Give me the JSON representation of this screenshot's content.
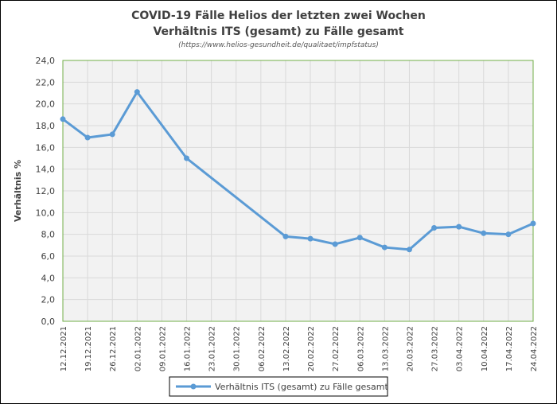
{
  "chart_data": {
    "type": "line",
    "title": "COVID-19 Fälle Helios der letzten zwei Wochen",
    "subtitle": "Verhältnis ITS (gesamt) zu Fälle gesamt",
    "source": "(https://www.helios-gesundheit.de/qualitaet/impfstatus)",
    "xlabel": "",
    "ylabel": "Verhältnis %",
    "ylim": [
      0,
      24
    ],
    "ytick_step": 2,
    "ytick_labels": [
      "0,0",
      "2,0",
      "4,0",
      "6,0",
      "8,0",
      "10,0",
      "12,0",
      "14,0",
      "16,0",
      "18,0",
      "20,0",
      "22,0",
      "24,0"
    ],
    "categories": [
      "12.12.2021",
      "19.12.2021",
      "26.12.2021",
      "02.01.2022",
      "09.01.2022",
      "16.01.2022",
      "23.01.2022",
      "30.01.2022",
      "06.02.2022",
      "13.02.2022",
      "20.02.2022",
      "27.02.2022",
      "06.03.2022",
      "13.03.2022",
      "20.03.2022",
      "27.03.2022",
      "03.04.2022",
      "10.04.2022",
      "17.04.2022",
      "24.04.2022"
    ],
    "grid": true,
    "legend_position": "bottom",
    "series": [
      {
        "name": "Verhältnis ITS (gesamt) zu Fälle gesamt",
        "color": "#5B9BD5",
        "values": [
          18.6,
          16.9,
          17.2,
          21.1,
          null,
          15.0,
          null,
          null,
          null,
          7.8,
          7.6,
          7.1,
          7.7,
          6.8,
          6.6,
          8.6,
          8.7,
          8.1,
          8.0,
          9.0
        ]
      }
    ]
  }
}
